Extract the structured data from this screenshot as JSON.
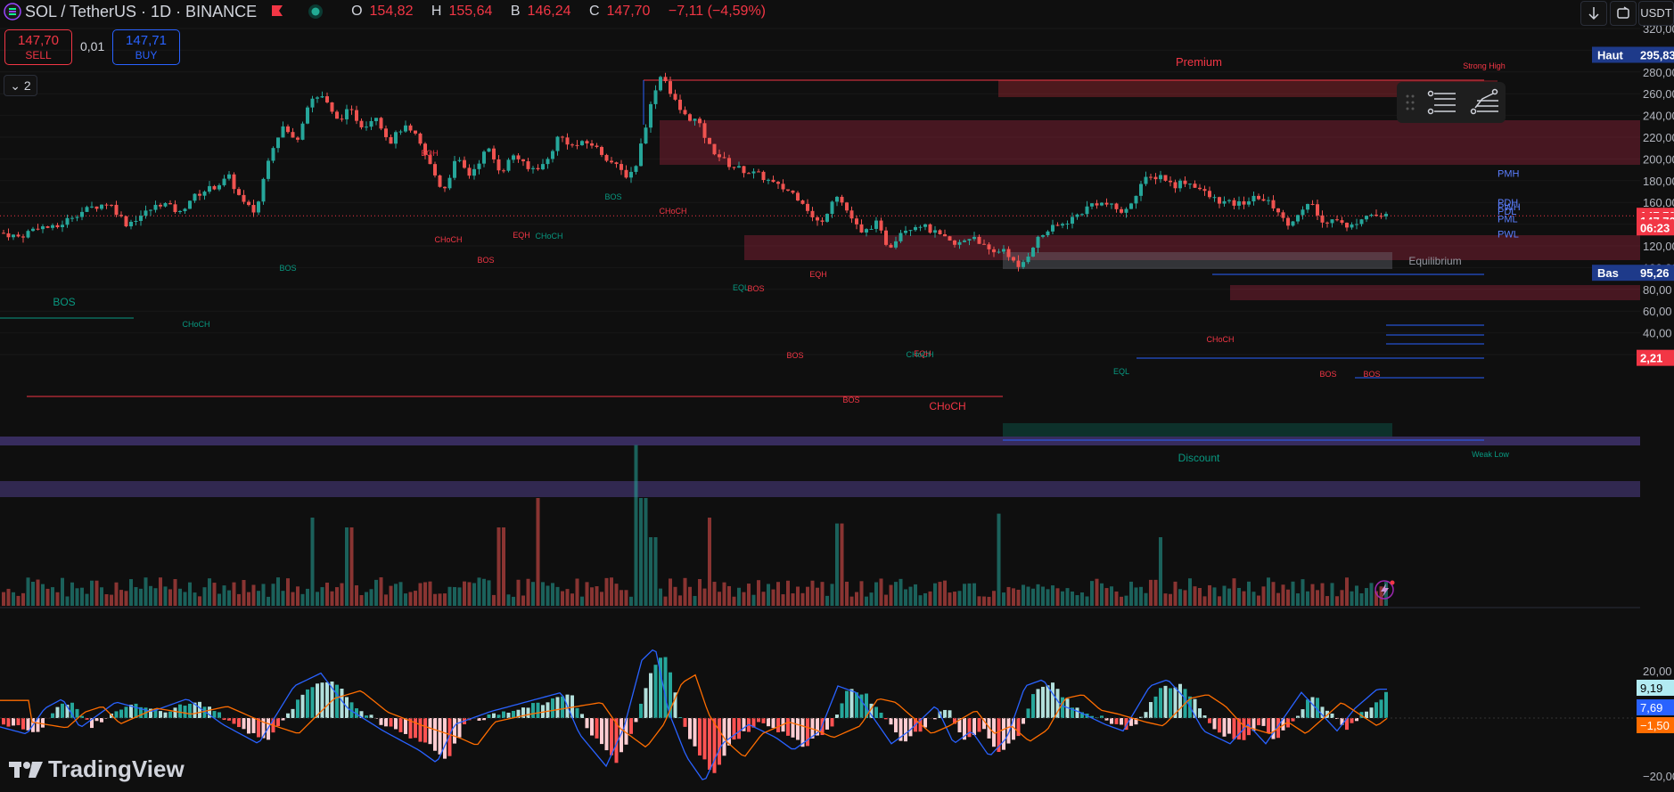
{
  "header": {
    "symbol": "SOL / TetherUS · 1D · BINANCE",
    "ohlc": {
      "o_label": "O",
      "o": "154,82",
      "h_label": "H",
      "h": "155,64",
      "b_label": "B",
      "b": "146,24",
      "c_label": "C",
      "c": "147,70",
      "change": "−7,11 (−4,59%)"
    }
  },
  "trade": {
    "sell_price": "147,70",
    "sell_label": "SELL",
    "spread": "0,01",
    "buy_price": "147,71",
    "buy_label": "BUY"
  },
  "collapse_label": "⌄ 2",
  "currency": "USDT",
  "logo": "TradingView",
  "colors": {
    "up": "#26a69a",
    "down": "#ef5350",
    "bg": "#0f0f0f",
    "accent": "#2962ff"
  },
  "chart_data": {
    "type": "candlestick",
    "price_axis": {
      "ticks": [
        320,
        300,
        280,
        260,
        240,
        220,
        200,
        180,
        160,
        140,
        120,
        100,
        80,
        60,
        40,
        20
      ],
      "tick_labels": [
        "320,00",
        "300,00",
        "280,00",
        "260,00",
        "240,00",
        "220,00",
        "200,00",
        "180,00",
        "160,00",
        "140,00",
        "120,00",
        "100,00",
        "80,00",
        "60,00",
        "40,00",
        "20,00"
      ]
    },
    "price_tags": [
      {
        "label": "Haut",
        "value": "295,83",
        "price": 295.83,
        "color": "#1e3a8a"
      },
      {
        "label": "",
        "value": "147,70",
        "price": 147.7,
        "color": "#f23645"
      },
      {
        "label": "",
        "value": "147,70",
        "price": 143,
        "color": "#f23645"
      },
      {
        "label": "",
        "value": "06:23",
        "price": 137,
        "color": "#f23645"
      },
      {
        "label": "Bas",
        "value": "95,26",
        "price": 95.26,
        "color": "#1e3a8a"
      },
      {
        "label": "",
        "value": "2,21",
        "price": 17,
        "color": "#f23645"
      }
    ],
    "zone_labels": [
      {
        "text": "Premium",
        "color": "#f23645"
      },
      {
        "text": "Strong High",
        "color": "#f23645"
      },
      {
        "text": "Equilibrium",
        "color": "#9598a1"
      },
      {
        "text": "Discount",
        "color": "#089981"
      },
      {
        "text": "Weak Low",
        "color": "#089981"
      }
    ],
    "structure_labels": [
      {
        "text": "BOS",
        "color": "#089981"
      },
      {
        "text": "CHoCH",
        "color": "#089981"
      },
      {
        "text": "BOS",
        "color": "#089981"
      },
      {
        "text": "EQH",
        "color": "#f23645"
      },
      {
        "text": "CHoCH",
        "color": "#f23645"
      },
      {
        "text": "BOS",
        "color": "#f23645"
      },
      {
        "text": "EQH",
        "color": "#f23645"
      },
      {
        "text": "CHoCH",
        "color": "#089981"
      },
      {
        "text": "BOS",
        "color": "#089981"
      },
      {
        "text": "CHoCH",
        "color": "#f23645"
      },
      {
        "text": "EQL",
        "color": "#089981"
      },
      {
        "text": "BOS",
        "color": "#f23645"
      },
      {
        "text": "EQH",
        "color": "#f23645"
      },
      {
        "text": "BOS",
        "color": "#f23645"
      },
      {
        "text": "EQH",
        "color": "#f23645"
      },
      {
        "text": "CHoCH",
        "color": "#089981"
      },
      {
        "text": "BOS",
        "color": "#f23645"
      },
      {
        "text": "CHoCH",
        "color": "#f23645"
      },
      {
        "text": "CHoCH",
        "color": "#f23645"
      },
      {
        "text": "EQL",
        "color": "#089981"
      },
      {
        "text": "BOS",
        "color": "#f23645"
      },
      {
        "text": "BOS",
        "color": "#f23645"
      }
    ],
    "level_labels": [
      {
        "text": "PMH",
        "price": 187
      },
      {
        "text": "PDH",
        "price": 160
      },
      {
        "text": "PWH",
        "price": 156
      },
      {
        "text": "PDL",
        "price": 152
      },
      {
        "text": "PML",
        "price": 145
      },
      {
        "text": "PWL",
        "price": 131
      }
    ],
    "macd": {
      "axis_ticks": [
        20,
        -20
      ],
      "axis_labels": [
        "20,00",
        "−20,00"
      ],
      "tags": [
        {
          "value": "9,19",
          "color": "#b2ebf2"
        },
        {
          "value": "7,69",
          "color": "#2962ff"
        },
        {
          "value": "−1,50",
          "color": "#ff6d00"
        }
      ]
    },
    "anchors": [
      [
        0,
        132
      ],
      [
        20,
        128
      ],
      [
        40,
        138
      ],
      [
        60,
        136
      ],
      [
        80,
        148
      ],
      [
        100,
        155
      ],
      [
        120,
        160
      ],
      [
        140,
        140
      ],
      [
        160,
        150
      ],
      [
        180,
        160
      ],
      [
        200,
        150
      ],
      [
        210,
        162
      ],
      [
        225,
        170
      ],
      [
        240,
        175
      ],
      [
        255,
        183
      ],
      [
        270,
        160
      ],
      [
        285,
        150
      ],
      [
        300,
        205
      ],
      [
        315,
        230
      ],
      [
        330,
        215
      ],
      [
        345,
        255
      ],
      [
        360,
        258
      ],
      [
        375,
        235
      ],
      [
        390,
        245
      ],
      [
        405,
        230
      ],
      [
        420,
        240
      ],
      [
        435,
        215
      ],
      [
        450,
        230
      ],
      [
        465,
        220
      ],
      [
        480,
        195
      ],
      [
        495,
        170
      ],
      [
        510,
        200
      ],
      [
        525,
        185
      ],
      [
        545,
        210
      ],
      [
        560,
        188
      ],
      [
        575,
        205
      ],
      [
        590,
        190
      ],
      [
        610,
        195
      ],
      [
        625,
        222
      ],
      [
        640,
        212
      ],
      [
        660,
        215
      ],
      [
        680,
        200
      ],
      [
        700,
        185
      ],
      [
        710,
        190
      ],
      [
        725,
        240
      ],
      [
        735,
        270
      ],
      [
        742,
        280
      ],
      [
        750,
        260
      ],
      [
        765,
        240
      ],
      [
        780,
        235
      ],
      [
        795,
        210
      ],
      [
        815,
        195
      ],
      [
        830,
        190
      ],
      [
        850,
        185
      ],
      [
        870,
        175
      ],
      [
        885,
        170
      ],
      [
        900,
        160
      ],
      [
        910,
        145
      ],
      [
        920,
        140
      ],
      [
        935,
        170
      ],
      [
        950,
        150
      ],
      [
        965,
        130
      ],
      [
        980,
        142
      ],
      [
        995,
        118
      ],
      [
        1010,
        135
      ],
      [
        1030,
        140
      ],
      [
        1050,
        130
      ],
      [
        1070,
        120
      ],
      [
        1090,
        130
      ],
      [
        1110,
        112
      ],
      [
        1125,
        118
      ],
      [
        1140,
        98
      ],
      [
        1150,
        110
      ],
      [
        1160,
        125
      ],
      [
        1175,
        135
      ],
      [
        1190,
        140
      ],
      [
        1210,
        150
      ],
      [
        1225,
        160
      ],
      [
        1240,
        158
      ],
      [
        1260,
        150
      ],
      [
        1280,
        180
      ],
      [
        1300,
        185
      ],
      [
        1315,
        175
      ],
      [
        1325,
        180
      ],
      [
        1340,
        175
      ],
      [
        1355,
        165
      ],
      [
        1370,
        160
      ],
      [
        1385,
        158
      ],
      [
        1400,
        162
      ],
      [
        1410,
        165
      ],
      [
        1430,
        155
      ],
      [
        1440,
        140
      ],
      [
        1455,
        148
      ],
      [
        1470,
        160
      ],
      [
        1480,
        140
      ],
      [
        1495,
        148
      ],
      [
        1510,
        135
      ],
      [
        1530,
        150
      ],
      [
        1545,
        147
      ],
      [
        1555,
        147.7
      ]
    ],
    "volume_spikes": [
      [
        350,
        45
      ],
      [
        390,
        40
      ],
      [
        560,
        40
      ],
      [
        600,
        55
      ],
      [
        715,
        82
      ],
      [
        720,
        55
      ],
      [
        730,
        35
      ],
      [
        795,
        45
      ],
      [
        940,
        42
      ],
      [
        1120,
        47
      ],
      [
        1300,
        35
      ]
    ],
    "macd_anchors": [
      [
        0,
        -2
      ],
      [
        40,
        -5
      ],
      [
        60,
        3
      ],
      [
        80,
        6
      ],
      [
        100,
        -3
      ],
      [
        140,
        5
      ],
      [
        180,
        2
      ],
      [
        220,
        6
      ],
      [
        260,
        -2
      ],
      [
        300,
        -8
      ],
      [
        340,
        10
      ],
      [
        370,
        14
      ],
      [
        400,
        3
      ],
      [
        440,
        -4
      ],
      [
        480,
        -10
      ],
      [
        500,
        -14
      ],
      [
        520,
        -2
      ],
      [
        560,
        2
      ],
      [
        600,
        5
      ],
      [
        640,
        8
      ],
      [
        660,
        -5
      ],
      [
        690,
        -15
      ],
      [
        710,
        -3
      ],
      [
        730,
        18
      ],
      [
        745,
        22
      ],
      [
        760,
        2
      ],
      [
        780,
        -12
      ],
      [
        800,
        -20
      ],
      [
        820,
        -8
      ],
      [
        850,
        -2
      ],
      [
        880,
        -6
      ],
      [
        900,
        -10
      ],
      [
        930,
        -4
      ],
      [
        950,
        10
      ],
      [
        970,
        8
      ],
      [
        990,
        0
      ],
      [
        1010,
        -8
      ],
      [
        1030,
        -4
      ],
      [
        1060,
        4
      ],
      [
        1080,
        -8
      ],
      [
        1100,
        -4
      ],
      [
        1120,
        -12
      ],
      [
        1140,
        -6
      ],
      [
        1160,
        10
      ],
      [
        1180,
        12
      ],
      [
        1200,
        4
      ],
      [
        1220,
        2
      ],
      [
        1250,
        -2
      ],
      [
        1270,
        -4
      ],
      [
        1300,
        10
      ],
      [
        1320,
        12
      ],
      [
        1340,
        6
      ],
      [
        1360,
        -4
      ],
      [
        1390,
        -8
      ],
      [
        1410,
        -2
      ],
      [
        1430,
        -8
      ],
      [
        1450,
        0
      ],
      [
        1470,
        8
      ],
      [
        1490,
        2
      ],
      [
        1510,
        -4
      ],
      [
        1530,
        3
      ],
      [
        1555,
        9
      ]
    ]
  }
}
